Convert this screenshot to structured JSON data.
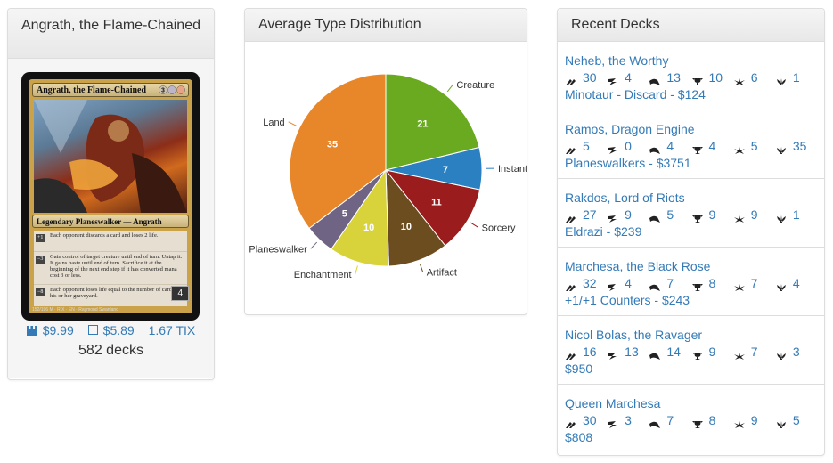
{
  "commander": {
    "name": "Angrath, the Flame-Chained",
    "card": {
      "title": "Angrath, the Flame-Chained",
      "type_line": "Legendary Planeswalker — Angrath",
      "abilities": [
        {
          "loyalty": "+1",
          "text": "Each opponent discards a card and loses 2 life."
        },
        {
          "loyalty": "−3",
          "text": "Gain control of target creature until end of turn. Untap it. It gains haste until end of turn. Sacrifice it at the beginning of the next end step if it has converted mana cost 3 or less."
        },
        {
          "loyalty": "−8",
          "text": "Each opponent loses life equal to the number of cards in his or her graveyard."
        }
      ],
      "loyalty": "4",
      "footer": "152/196 M · RIX · EN · Raymond Swanland"
    },
    "prices": {
      "tcg": "$9.99",
      "ck": "$5.89",
      "tix": "1.67 TIX"
    },
    "decks": "582 decks"
  },
  "distribution": {
    "title": "Average Type Distribution"
  },
  "chart_data": {
    "type": "pie",
    "title": "Average Type Distribution",
    "categories": [
      "Creature",
      "Instant",
      "Sorcery",
      "Artifact",
      "Enchantment",
      "Planeswalker",
      "Land"
    ],
    "values": [
      21,
      7,
      11,
      10,
      10,
      5,
      35
    ],
    "colors": [
      "#6aaa21",
      "#2b80c1",
      "#9b1c1c",
      "#6b4d20",
      "#d8d33a",
      "#6f6484",
      "#e8862a"
    ]
  },
  "recent": {
    "title": "Recent Decks",
    "stat_icons": [
      "nib-icon",
      "lightning-icon",
      "swirl-icon",
      "trophy-icon",
      "burst-icon",
      "plant-icon"
    ],
    "decks": [
      {
        "name": "Neheb, the Worthy",
        "stats": [
          "30",
          "4",
          "13",
          "10",
          "6",
          "1"
        ],
        "archetype": "Minotaur - Discard - $124"
      },
      {
        "name": "Ramos, Dragon Engine",
        "stats": [
          "5",
          "0",
          "4",
          "4",
          "5",
          "35"
        ],
        "archetype": "Planeswalkers - $3751"
      },
      {
        "name": "Rakdos, Lord of Riots",
        "stats": [
          "27",
          "9",
          "5",
          "9",
          "9",
          "1"
        ],
        "archetype": "Eldrazi - $239"
      },
      {
        "name": "Marchesa, the Black Rose",
        "stats": [
          "32",
          "4",
          "7",
          "8",
          "7",
          "4"
        ],
        "archetype": "+1/+1 Counters - $243"
      },
      {
        "name": "Nicol Bolas, the Ravager",
        "stats": [
          "16",
          "13",
          "14",
          "9",
          "7",
          "3"
        ],
        "archetype": "$950"
      },
      {
        "name": "Queen Marchesa",
        "stats": [
          "30",
          "3",
          "7",
          "8",
          "9",
          "5"
        ],
        "archetype": "$808"
      }
    ]
  }
}
